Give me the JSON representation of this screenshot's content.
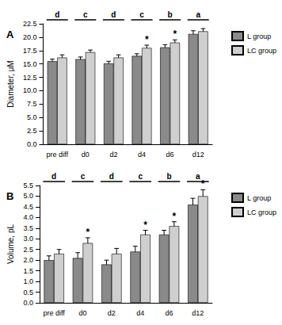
{
  "chart_data": [
    {
      "type": "bar",
      "title": "A",
      "y_label": "Diameter, μM",
      "categories": [
        "pre diff",
        "d0",
        "d2",
        "d4",
        "d6",
        "d12"
      ],
      "group_labels": [
        "d",
        "c",
        "d",
        "c",
        "b",
        "a"
      ],
      "series": [
        {
          "name": "L group",
          "color": "#8a8a8a",
          "values": [
            15.5,
            15.9,
            15.1,
            16.5,
            18.1,
            20.6
          ],
          "errors": [
            0.4,
            0.4,
            0.4,
            0.4,
            0.5,
            0.6
          ],
          "annotations": [
            null,
            null,
            null,
            null,
            null,
            null
          ]
        },
        {
          "name": "LC group",
          "color": "#cfcfcf",
          "values": [
            16.2,
            17.2,
            16.2,
            18.0,
            19.0,
            21.1
          ],
          "errors": [
            0.5,
            0.4,
            0.5,
            0.5,
            0.5,
            0.5
          ],
          "annotations": [
            null,
            null,
            null,
            "*",
            "*",
            null
          ]
        }
      ],
      "ylim": [
        0,
        22.5
      ],
      "yticks": [
        {
          "value": 0,
          "label": "0.0"
        },
        2.5,
        {
          "value": 5,
          "label": "5.0"
        },
        7.5,
        {
          "value": 10,
          "label": "10.0"
        },
        12.5,
        {
          "value": 15,
          "label": "15.0"
        },
        17.5,
        {
          "value": 20,
          "label": "20.0"
        },
        22.5
      ],
      "grid": false,
      "legend": "right"
    },
    {
      "type": "bar",
      "title": "B",
      "y_label": "Volume, pL",
      "categories": [
        "pre diff",
        "d0",
        "d2",
        "d4",
        "d6",
        "d12"
      ],
      "group_labels": [
        "d",
        "c",
        "d",
        "c",
        "b",
        "a"
      ],
      "series": [
        {
          "name": "L group",
          "color": "#8a8a8a",
          "values": [
            2.0,
            2.1,
            1.8,
            2.4,
            3.2,
            4.6
          ],
          "errors": [
            0.2,
            0.25,
            0.2,
            0.25,
            0.2,
            0.3
          ],
          "annotations": [
            null,
            null,
            null,
            null,
            null,
            null
          ]
        },
        {
          "name": "LC group",
          "color": "#cfcfcf",
          "values": [
            2.3,
            2.8,
            2.3,
            3.2,
            3.6,
            5.0
          ],
          "errors": [
            0.2,
            0.25,
            0.25,
            0.2,
            0.2,
            0.3
          ],
          "annotations": [
            null,
            "*",
            null,
            "*",
            "*",
            "*"
          ]
        }
      ],
      "ylim": [
        0,
        5.5
      ],
      "yticks": [
        {
          "value": 0,
          "label": "0.0"
        },
        0.5,
        {
          "value": 1,
          "label": "1.0"
        },
        1.5,
        {
          "value": 2,
          "label": "2.0"
        },
        2.5,
        {
          "value": 3,
          "label": "3.0"
        },
        3.5,
        {
          "value": 4,
          "label": "4.0"
        },
        4.5,
        {
          "value": 5,
          "label": "5.0"
        },
        5.5
      ],
      "grid": false,
      "legend": "right"
    }
  ]
}
